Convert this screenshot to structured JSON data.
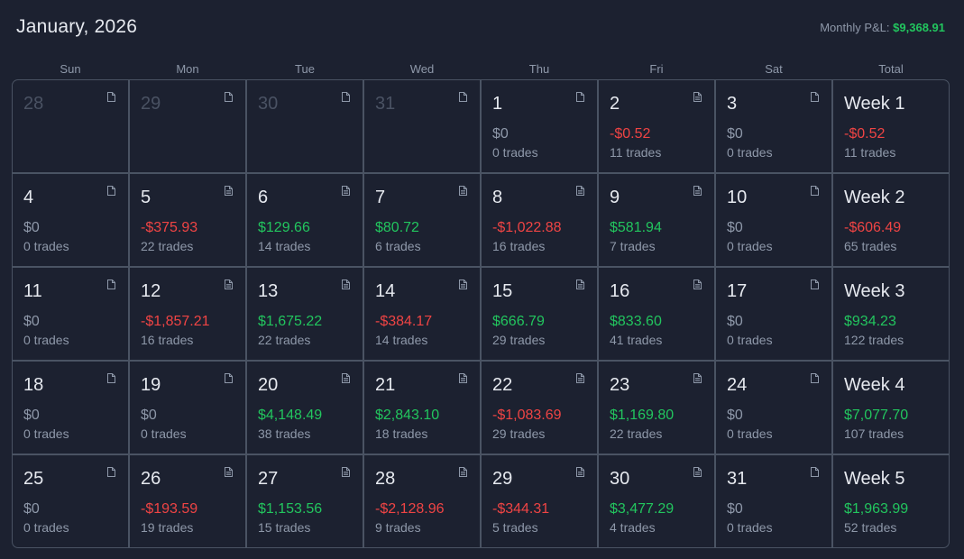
{
  "header": {
    "title": "January, 2026",
    "monthly_label": "Monthly P&L:",
    "monthly_value": "$9,368.91"
  },
  "day_headers": [
    "Sun",
    "Mon",
    "Tue",
    "Wed",
    "Thu",
    "Fri",
    "Sat",
    "Total"
  ],
  "colors": {
    "positive": "#22c55e",
    "negative": "#ef4444",
    "neutral": "#8e98a9",
    "background": "#1c2130",
    "border": "#4a5363"
  },
  "weeks": [
    {
      "days": [
        {
          "num": "28",
          "outside": true,
          "note": "empty"
        },
        {
          "num": "29",
          "outside": true,
          "note": "empty"
        },
        {
          "num": "30",
          "outside": true,
          "note": "empty"
        },
        {
          "num": "31",
          "outside": true,
          "note": "empty"
        },
        {
          "num": "1",
          "pnl": "$0",
          "sign": "zero",
          "trades": "0 trades",
          "note": "empty"
        },
        {
          "num": "2",
          "pnl": "-$0.52",
          "sign": "neg",
          "trades": "11 trades",
          "note": "lines"
        },
        {
          "num": "3",
          "pnl": "$0",
          "sign": "zero",
          "trades": "0 trades",
          "note": "empty"
        }
      ],
      "total": {
        "label": "Week 1",
        "pnl": "-$0.52",
        "sign": "neg",
        "trades": "11 trades"
      }
    },
    {
      "days": [
        {
          "num": "4",
          "pnl": "$0",
          "sign": "zero",
          "trades": "0 trades",
          "note": "empty"
        },
        {
          "num": "5",
          "pnl": "-$375.93",
          "sign": "neg",
          "trades": "22 trades",
          "note": "lines"
        },
        {
          "num": "6",
          "pnl": "$129.66",
          "sign": "pos",
          "trades": "14 trades",
          "note": "lines"
        },
        {
          "num": "7",
          "pnl": "$80.72",
          "sign": "pos",
          "trades": "6 trades",
          "note": "lines"
        },
        {
          "num": "8",
          "pnl": "-$1,022.88",
          "sign": "neg",
          "trades": "16 trades",
          "note": "lines"
        },
        {
          "num": "9",
          "pnl": "$581.94",
          "sign": "pos",
          "trades": "7 trades",
          "note": "lines"
        },
        {
          "num": "10",
          "pnl": "$0",
          "sign": "zero",
          "trades": "0 trades",
          "note": "empty"
        }
      ],
      "total": {
        "label": "Week 2",
        "pnl": "-$606.49",
        "sign": "neg",
        "trades": "65 trades"
      }
    },
    {
      "days": [
        {
          "num": "11",
          "pnl": "$0",
          "sign": "zero",
          "trades": "0 trades",
          "note": "empty"
        },
        {
          "num": "12",
          "pnl": "-$1,857.21",
          "sign": "neg",
          "trades": "16 trades",
          "note": "lines"
        },
        {
          "num": "13",
          "pnl": "$1,675.22",
          "sign": "pos",
          "trades": "22 trades",
          "note": "lines"
        },
        {
          "num": "14",
          "pnl": "-$384.17",
          "sign": "neg",
          "trades": "14 trades",
          "note": "lines"
        },
        {
          "num": "15",
          "pnl": "$666.79",
          "sign": "pos",
          "trades": "29 trades",
          "note": "lines"
        },
        {
          "num": "16",
          "pnl": "$833.60",
          "sign": "pos",
          "trades": "41 trades",
          "note": "lines"
        },
        {
          "num": "17",
          "pnl": "$0",
          "sign": "zero",
          "trades": "0 trades",
          "note": "empty"
        }
      ],
      "total": {
        "label": "Week 3",
        "pnl": "$934.23",
        "sign": "pos",
        "trades": "122 trades"
      }
    },
    {
      "days": [
        {
          "num": "18",
          "pnl": "$0",
          "sign": "zero",
          "trades": "0 trades",
          "note": "empty"
        },
        {
          "num": "19",
          "pnl": "$0",
          "sign": "zero",
          "trades": "0 trades",
          "note": "empty"
        },
        {
          "num": "20",
          "pnl": "$4,148.49",
          "sign": "pos",
          "trades": "38 trades",
          "note": "lines"
        },
        {
          "num": "21",
          "pnl": "$2,843.10",
          "sign": "pos",
          "trades": "18 trades",
          "note": "lines"
        },
        {
          "num": "22",
          "pnl": "-$1,083.69",
          "sign": "neg",
          "trades": "29 trades",
          "note": "lines"
        },
        {
          "num": "23",
          "pnl": "$1,169.80",
          "sign": "pos",
          "trades": "22 trades",
          "note": "lines"
        },
        {
          "num": "24",
          "pnl": "$0",
          "sign": "zero",
          "trades": "0 trades",
          "note": "empty"
        }
      ],
      "total": {
        "label": "Week 4",
        "pnl": "$7,077.70",
        "sign": "pos",
        "trades": "107 trades"
      }
    },
    {
      "days": [
        {
          "num": "25",
          "pnl": "$0",
          "sign": "zero",
          "trades": "0 trades",
          "note": "empty"
        },
        {
          "num": "26",
          "pnl": "-$193.59",
          "sign": "neg",
          "trades": "19 trades",
          "note": "lines"
        },
        {
          "num": "27",
          "pnl": "$1,153.56",
          "sign": "pos",
          "trades": "15 trades",
          "note": "lines"
        },
        {
          "num": "28",
          "pnl": "-$2,128.96",
          "sign": "neg",
          "trades": "9 trades",
          "note": "lines"
        },
        {
          "num": "29",
          "pnl": "-$344.31",
          "sign": "neg",
          "trades": "5 trades",
          "note": "lines"
        },
        {
          "num": "30",
          "pnl": "$3,477.29",
          "sign": "pos",
          "trades": "4 trades",
          "note": "lines"
        },
        {
          "num": "31",
          "pnl": "$0",
          "sign": "zero",
          "trades": "0 trades",
          "note": "empty"
        }
      ],
      "total": {
        "label": "Week 5",
        "pnl": "$1,963.99",
        "sign": "pos",
        "trades": "52 trades"
      }
    }
  ]
}
